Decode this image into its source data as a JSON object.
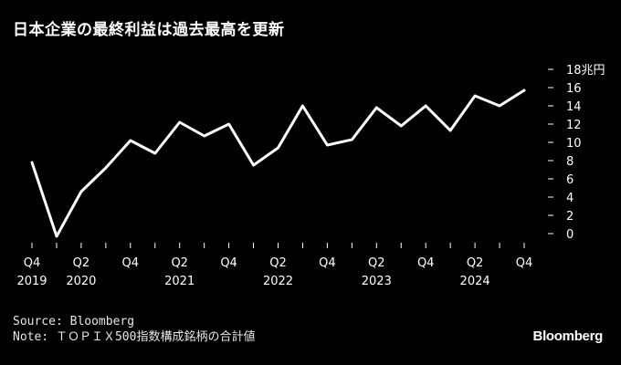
{
  "title": "日本企業の最終利益は過去最高を更新",
  "footer": {
    "source": "Source: Bloomberg",
    "note": "Note: ＴＯＰＩＸ500指数構成銘柄の合計値"
  },
  "logo": "Bloomberg",
  "colors": {
    "background": "#000000",
    "line": "#ffffff",
    "text": "#ffffff"
  },
  "chart_data": {
    "type": "line",
    "ylim": [
      0,
      18
    ],
    "yticks": [
      0,
      2,
      4,
      6,
      8,
      10,
      12,
      14,
      16,
      18
    ],
    "ytick_labels": [
      "0",
      "2",
      "4",
      "6",
      "8",
      "10",
      "12",
      "14",
      "16",
      "18兆円"
    ],
    "x": [
      "2019Q4",
      "2020Q1",
      "2020Q2",
      "2020Q3",
      "2020Q4",
      "2021Q1",
      "2021Q2",
      "2021Q3",
      "2021Q4",
      "2022Q1",
      "2022Q2",
      "2022Q3",
      "2022Q4",
      "2023Q1",
      "2023Q2",
      "2023Q3",
      "2023Q4",
      "2024Q1",
      "2024Q2",
      "2024Q3",
      "2024Q4"
    ],
    "xtick_labels": [
      {
        "index": 0,
        "quarter": "Q4",
        "year": "2019"
      },
      {
        "index": 2,
        "quarter": "Q2",
        "year": "2020"
      },
      {
        "index": 4,
        "quarter": "Q4",
        "year": ""
      },
      {
        "index": 6,
        "quarter": "Q2",
        "year": "2021"
      },
      {
        "index": 8,
        "quarter": "Q4",
        "year": ""
      },
      {
        "index": 10,
        "quarter": "Q2",
        "year": "2022"
      },
      {
        "index": 12,
        "quarter": "Q4",
        "year": ""
      },
      {
        "index": 14,
        "quarter": "Q2",
        "year": "2023"
      },
      {
        "index": 16,
        "quarter": "Q4",
        "year": ""
      },
      {
        "index": 18,
        "quarter": "Q2",
        "year": "2024"
      },
      {
        "index": 20,
        "quarter": "Q4",
        "year": ""
      }
    ],
    "series": [
      {
        "values": [
          7.8,
          -0.3,
          4.6,
          7.2,
          10.2,
          8.8,
          12.2,
          10.7,
          12.0,
          7.5,
          9.4,
          14.0,
          9.7,
          10.3,
          13.8,
          11.8,
          14.0,
          11.3,
          15.1,
          14.0,
          15.7
        ]
      }
    ]
  }
}
